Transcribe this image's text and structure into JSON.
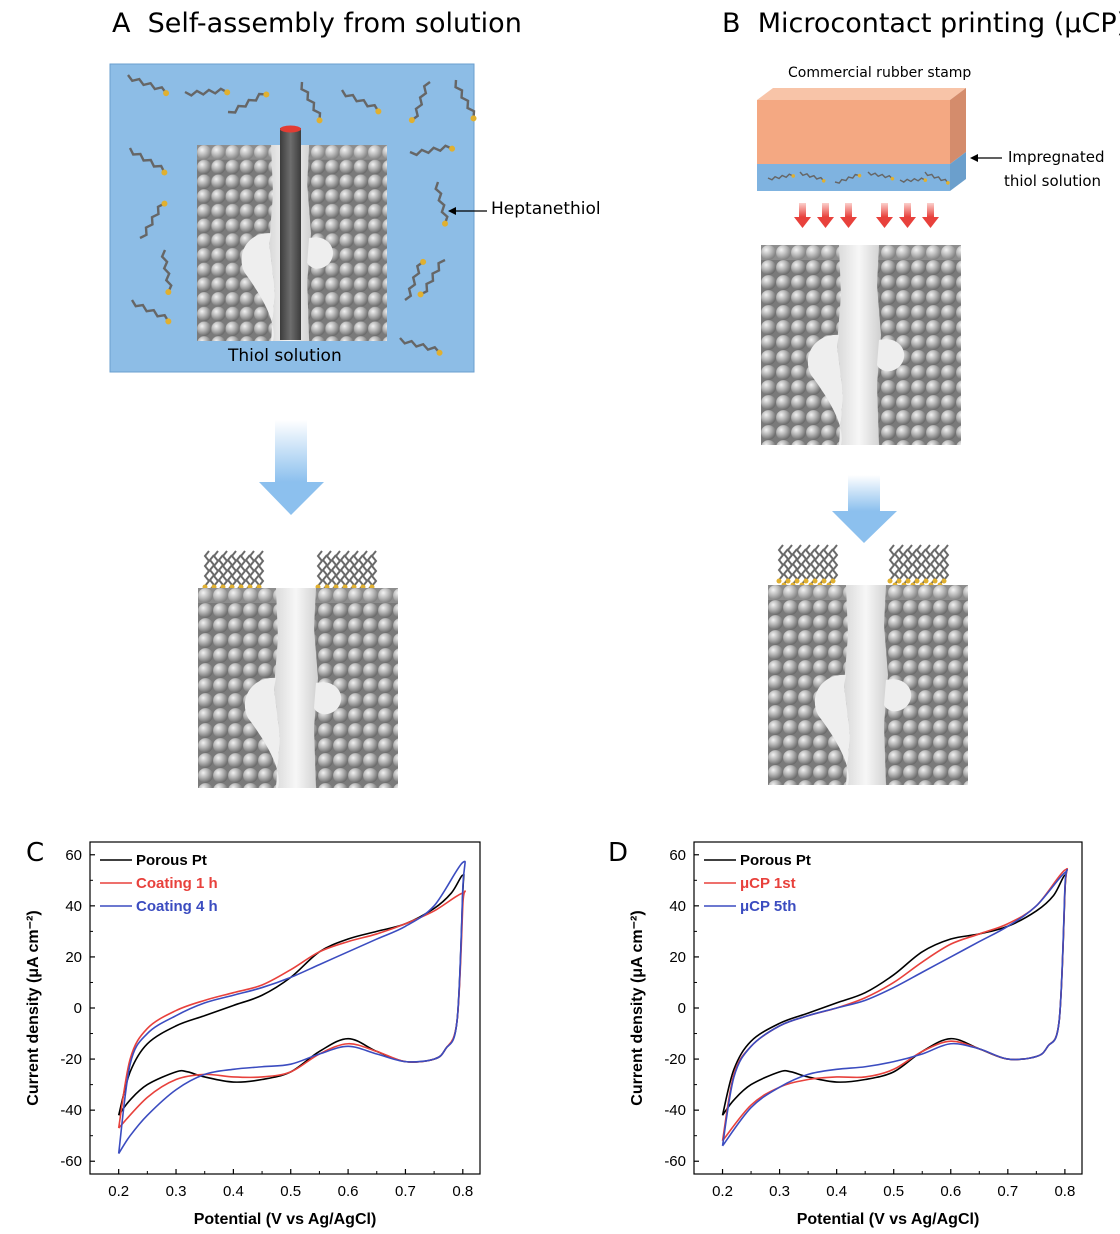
{
  "panels": {
    "A": {
      "letter": "A",
      "title": "Self-assembly from solution",
      "label_heptanethiol": "Heptanethiol",
      "label_solution": "Thiol solution"
    },
    "B": {
      "letter": "B",
      "title": "Microcontact printing (μCP)",
      "label_stamp": "Commercial rubber stamp",
      "label_impregnated_1": "Impregnated",
      "label_impregnated_2": "thiol solution"
    }
  },
  "colors": {
    "solution": "#8dbde6",
    "stamp": "#f4a882",
    "stamp_side": "#d48c6c",
    "stamp_base": "#7fb3e0",
    "sphere": "#a6a6a6",
    "rod": "#5a5a5a",
    "sulfur": "#e0b030",
    "arrow_red": "#e8413c",
    "arrow_blue": "#a9d0f2"
  },
  "icons": {
    "process_arrow": "down-arrow-icon",
    "print_arrow": "red-down-arrow-icon"
  },
  "chart_data": [
    {
      "panel": "C",
      "type": "line",
      "xlabel": "Potential (V vs Ag/AgCl)",
      "ylabel": "Current density (μA cm⁻²)",
      "xlim": [
        0.15,
        0.83
      ],
      "ylim": [
        -65,
        65
      ],
      "xticks": [
        0.2,
        0.3,
        0.4,
        0.5,
        0.6,
        0.7,
        0.8
      ],
      "yticks": [
        -60,
        -40,
        -20,
        0,
        20,
        40,
        60
      ],
      "legend_position": "top-left",
      "series": [
        {
          "name": "Porous Pt",
          "color": "#000000",
          "x": [
            0.2,
            0.22,
            0.25,
            0.3,
            0.35,
            0.4,
            0.45,
            0.5,
            0.55,
            0.6,
            0.65,
            0.7,
            0.75,
            0.78,
            0.8,
            0.8,
            0.79,
            0.77,
            0.75,
            0.7,
            0.65,
            0.6,
            0.55,
            0.5,
            0.45,
            0.4,
            0.35,
            0.32,
            0.3,
            0.25,
            0.22,
            0.2
          ],
          "y": [
            -42,
            -25,
            -14,
            -7,
            -3,
            1,
            5,
            12,
            22,
            27,
            30,
            33,
            39,
            45,
            52,
            45,
            -5,
            -16,
            -20,
            -21,
            -17,
            -12,
            -17,
            -25,
            -28,
            -29,
            -27,
            -25,
            -25,
            -30,
            -36,
            -42
          ]
        },
        {
          "name": "Coating 1 h",
          "color": "#e8413c",
          "x": [
            0.2,
            0.22,
            0.25,
            0.3,
            0.35,
            0.4,
            0.45,
            0.5,
            0.55,
            0.6,
            0.65,
            0.7,
            0.75,
            0.8,
            0.8,
            0.79,
            0.77,
            0.75,
            0.7,
            0.65,
            0.6,
            0.55,
            0.5,
            0.45,
            0.4,
            0.35,
            0.3,
            0.25,
            0.2
          ],
          "y": [
            -47,
            -20,
            -8,
            -1,
            3,
            6,
            9,
            15,
            22,
            26,
            29,
            33,
            38,
            45,
            40,
            -5,
            -16,
            -20,
            -21,
            -17,
            -14,
            -18,
            -25,
            -27,
            -27,
            -26,
            -28,
            -35,
            -47
          ]
        },
        {
          "name": "Coating 4 h",
          "color": "#3b4cc0",
          "x": [
            0.2,
            0.22,
            0.25,
            0.3,
            0.35,
            0.4,
            0.45,
            0.5,
            0.55,
            0.6,
            0.65,
            0.7,
            0.75,
            0.8,
            0.8,
            0.79,
            0.77,
            0.75,
            0.7,
            0.65,
            0.6,
            0.55,
            0.5,
            0.45,
            0.4,
            0.35,
            0.3,
            0.25,
            0.22,
            0.2
          ],
          "y": [
            -57,
            -22,
            -10,
            -3,
            2,
            5,
            8,
            12,
            17,
            22,
            27,
            32,
            40,
            57,
            47,
            -5,
            -16,
            -20,
            -21,
            -18,
            -15,
            -18,
            -22,
            -23,
            -24,
            -26,
            -32,
            -42,
            -50,
            -57
          ]
        }
      ]
    },
    {
      "panel": "D",
      "type": "line",
      "xlabel": "Potential (V vs Ag/AgCl)",
      "ylabel": "Current density (μA cm⁻²)",
      "xlim": [
        0.15,
        0.83
      ],
      "ylim": [
        -65,
        65
      ],
      "xticks": [
        0.2,
        0.3,
        0.4,
        0.5,
        0.6,
        0.7,
        0.8
      ],
      "yticks": [
        -60,
        -40,
        -20,
        0,
        20,
        40,
        60
      ],
      "legend_position": "top-left",
      "series": [
        {
          "name": "Porous Pt",
          "color": "#000000",
          "x": [
            0.2,
            0.22,
            0.25,
            0.3,
            0.35,
            0.4,
            0.45,
            0.5,
            0.55,
            0.6,
            0.65,
            0.7,
            0.75,
            0.78,
            0.8,
            0.8,
            0.79,
            0.77,
            0.75,
            0.7,
            0.65,
            0.6,
            0.55,
            0.5,
            0.45,
            0.4,
            0.35,
            0.32,
            0.3,
            0.25,
            0.22,
            0.2
          ],
          "y": [
            -42,
            -24,
            -13,
            -6,
            -2,
            2,
            6,
            13,
            22,
            27,
            29,
            32,
            38,
            44,
            52,
            45,
            -5,
            -15,
            -19,
            -20,
            -16,
            -12,
            -17,
            -25,
            -28,
            -29,
            -27,
            -25,
            -25,
            -30,
            -36,
            -42
          ]
        },
        {
          "name": "μCP 1st",
          "color": "#e8413c",
          "x": [
            0.2,
            0.22,
            0.25,
            0.3,
            0.35,
            0.4,
            0.45,
            0.5,
            0.55,
            0.6,
            0.65,
            0.7,
            0.75,
            0.8,
            0.8,
            0.79,
            0.77,
            0.75,
            0.7,
            0.65,
            0.6,
            0.55,
            0.5,
            0.45,
            0.4,
            0.35,
            0.3,
            0.25,
            0.2
          ],
          "y": [
            -52,
            -26,
            -15,
            -7,
            -3,
            0,
            4,
            10,
            18,
            25,
            29,
            33,
            40,
            54,
            46,
            -5,
            -15,
            -19,
            -20,
            -16,
            -13,
            -17,
            -24,
            -27,
            -27,
            -28,
            -31,
            -38,
            -52
          ]
        },
        {
          "name": "μCP 5th",
          "color": "#3b4cc0",
          "x": [
            0.2,
            0.22,
            0.25,
            0.3,
            0.35,
            0.4,
            0.45,
            0.5,
            0.55,
            0.6,
            0.65,
            0.7,
            0.75,
            0.8,
            0.8,
            0.79,
            0.77,
            0.75,
            0.7,
            0.65,
            0.6,
            0.55,
            0.5,
            0.45,
            0.4,
            0.35,
            0.3,
            0.25,
            0.2
          ],
          "y": [
            -54,
            -27,
            -15,
            -7,
            -3,
            0,
            3,
            8,
            14,
            20,
            26,
            32,
            40,
            53,
            47,
            -5,
            -15,
            -19,
            -20,
            -16,
            -14,
            -18,
            -21,
            -23,
            -24,
            -26,
            -31,
            -39,
            -54
          ]
        }
      ]
    }
  ]
}
